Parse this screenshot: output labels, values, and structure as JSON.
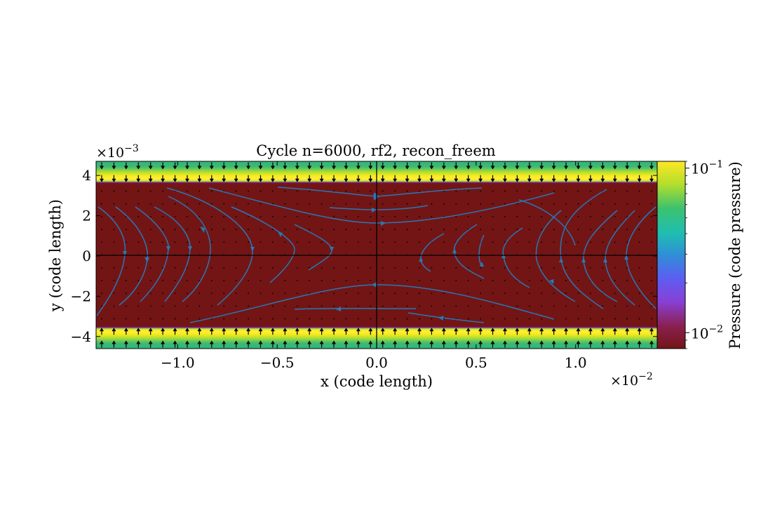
{
  "chart_data": {
    "type": "heatmap",
    "title": "Cycle n=6000, rf2, recon_freem",
    "xlabel": "x  (code length)",
    "ylabel": "y  (code length)",
    "colorbar_label": "Pressure  (code pressure)",
    "xlim": [
      -0.0141,
      0.0141
    ],
    "ylim": [
      -0.0046,
      0.0047
    ],
    "x_ticks": [
      {
        "value": -0.01,
        "label": "−1.0"
      },
      {
        "value": -0.005,
        "label": "−0.5"
      },
      {
        "value": 0.0,
        "label": "0.0"
      },
      {
        "value": 0.005,
        "label": "0.5"
      },
      {
        "value": 0.01,
        "label": "1.0"
      }
    ],
    "y_ticks": [
      {
        "value": 0.004,
        "label": "4"
      },
      {
        "value": 0.002,
        "label": "2"
      },
      {
        "value": 0.0,
        "label": "0"
      },
      {
        "value": -0.002,
        "label": "−2"
      },
      {
        "value": -0.004,
        "label": "−4"
      }
    ],
    "x_multiplier": "×10−2",
    "y_multiplier": "×10−3",
    "colorbar": {
      "scale": "log",
      "colormap": "viridis-like (dark red → purple → blue → teal → green → yellow)",
      "range": [
        0.008,
        0.11
      ],
      "ticks": [
        {
          "value": 0.1,
          "label_base": "10",
          "label_exp": "−1"
        },
        {
          "value": 0.01,
          "label_base": "10",
          "label_exp": "−2"
        }
      ]
    },
    "pressure_field": {
      "central_sheet_value": 0.008,
      "band_half_thickness_y": 0.0035,
      "band_peak_y": 0.004,
      "band_peak_value": 0.11,
      "edge_value": 0.04
    },
    "velocity_arrows": "black arrows pointing toward the sheet (downward at top band, upward at bottom band)",
    "streamlines_color": "#2878b5",
    "reference_lines": {
      "x": 0.0,
      "y": 0.0
    }
  }
}
